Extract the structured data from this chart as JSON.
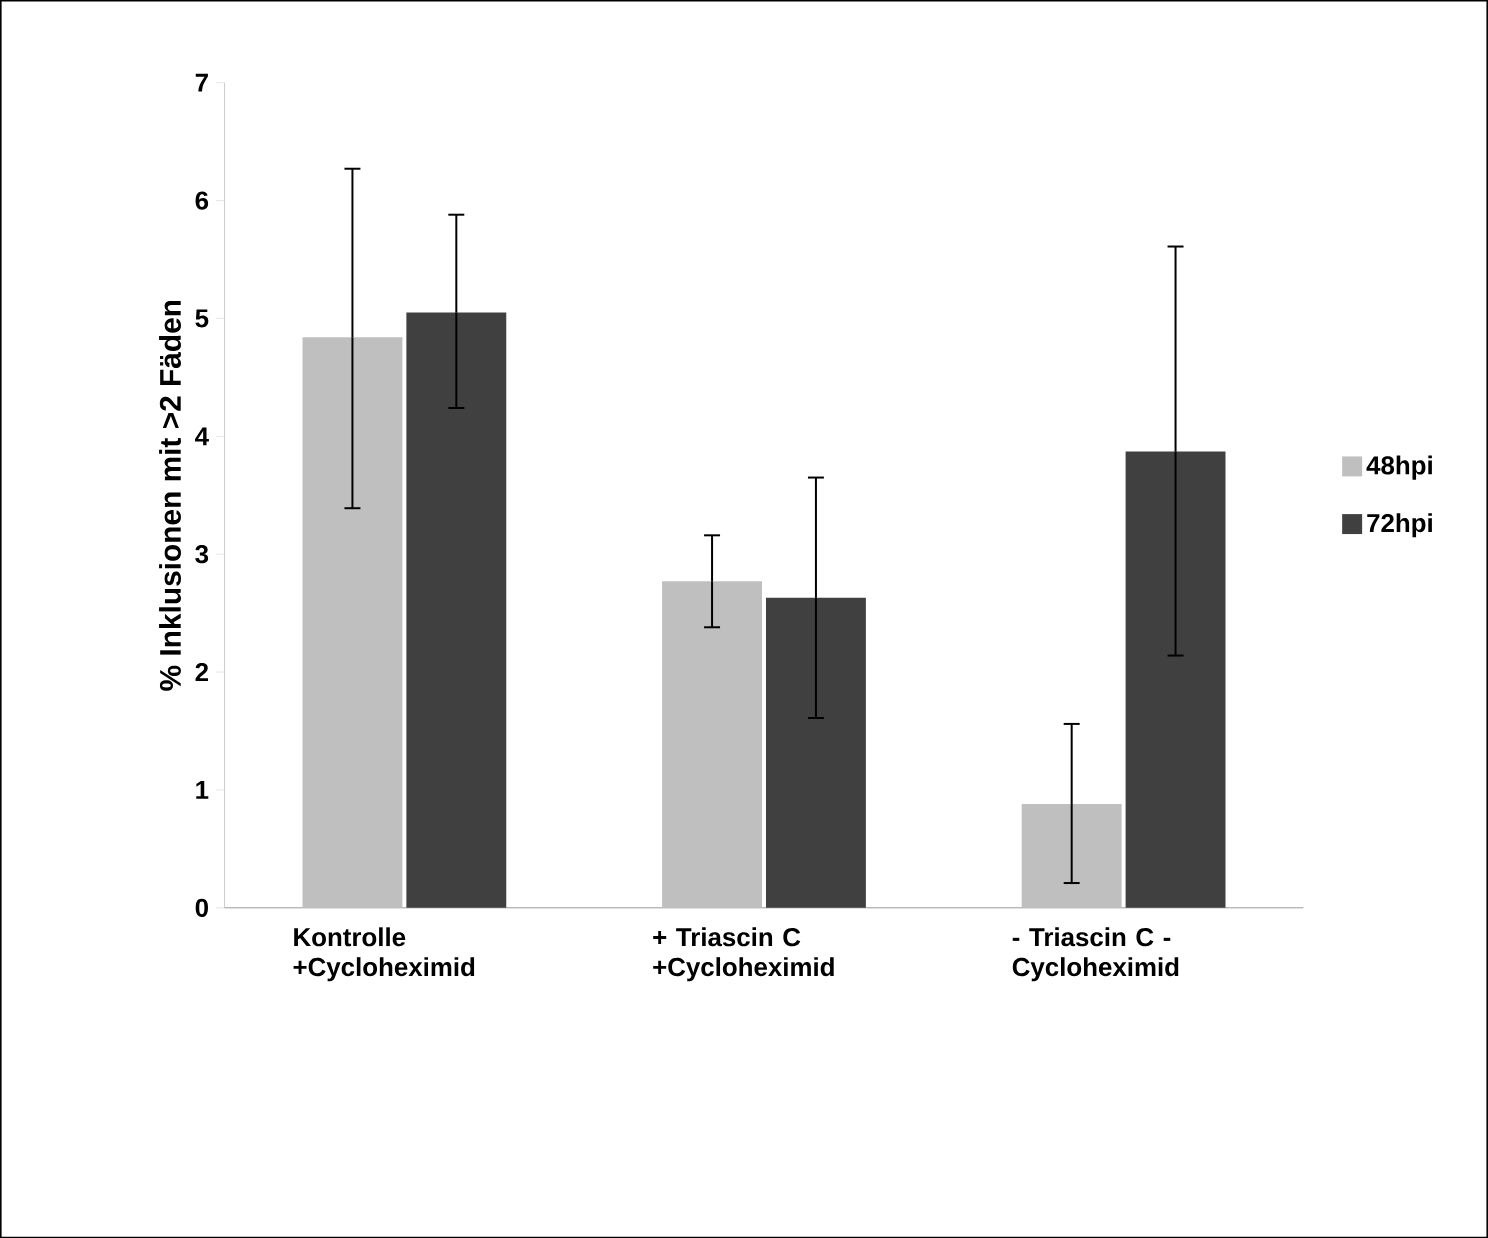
{
  "chart_data": {
    "type": "bar",
    "ylabel": "% Inklusionen mit >2 Fäden",
    "categories": [
      "Kontrolle +Cycloheximid",
      "+ Triascin C +Cycloheximid",
      "- Triascin C - Cycloheximid"
    ],
    "series": [
      {
        "name": "48hpi",
        "color": "#bfbfbf",
        "values": [
          4.84,
          2.77,
          0.88
        ],
        "errors": [
          [
            3.39,
            6.27
          ],
          [
            2.38,
            3.16
          ],
          [
            0.21,
            1.56
          ]
        ]
      },
      {
        "name": "72hpi",
        "color": "#404040",
        "values": [
          5.05,
          2.63,
          3.87
        ],
        "errors": [
          [
            4.24,
            5.88
          ],
          [
            1.61,
            3.65
          ],
          [
            2.14,
            5.61
          ]
        ]
      }
    ],
    "ylim": [
      0,
      7
    ],
    "yticks": [
      0,
      1,
      2,
      3,
      4,
      5,
      6,
      7
    ],
    "grid": false,
    "legend": "right"
  }
}
